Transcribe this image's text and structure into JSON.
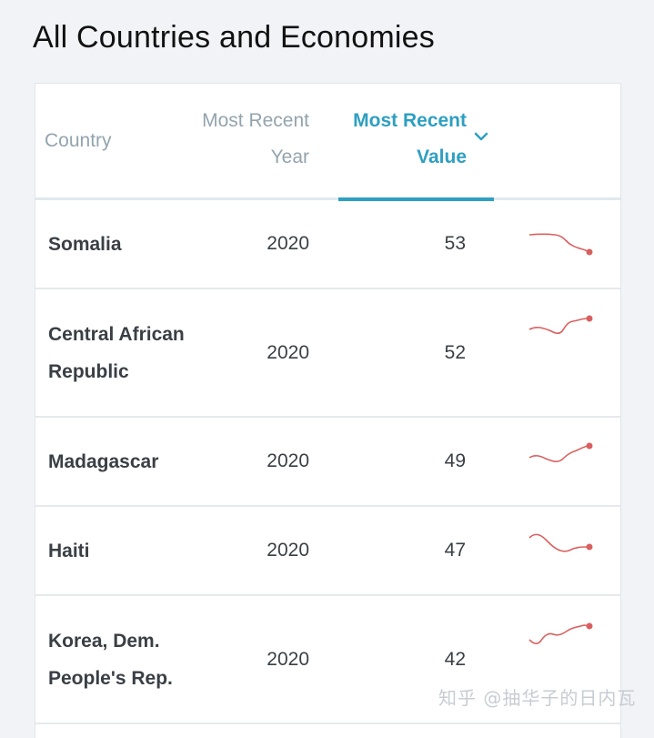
{
  "page": {
    "title": "All Countries and Economies"
  },
  "table": {
    "headers": {
      "country": "Country",
      "year": "Most Recent Year",
      "value": "Most Recent Value"
    },
    "sort": {
      "column": "value",
      "direction": "descending"
    },
    "rows": [
      {
        "country": "Somalia",
        "year": "2020",
        "value": "53"
      },
      {
        "country": "Central African Republic",
        "year": "2020",
        "value": "52"
      },
      {
        "country": "Madagascar",
        "year": "2020",
        "value": "49"
      },
      {
        "country": "Haiti",
        "year": "2020",
        "value": "47"
      },
      {
        "country": "Korea, Dem. People's Rep.",
        "year": "2020",
        "value": "42"
      }
    ]
  },
  "colors": {
    "accent": "#2e9fc2",
    "sparkline": "#d9605f",
    "header_text": "#93a4ae"
  },
  "watermark": {
    "text": "知乎 @抽华子的日内瓦"
  },
  "icons": {
    "sort": "chevron-down-icon",
    "trend": "sparkline"
  }
}
